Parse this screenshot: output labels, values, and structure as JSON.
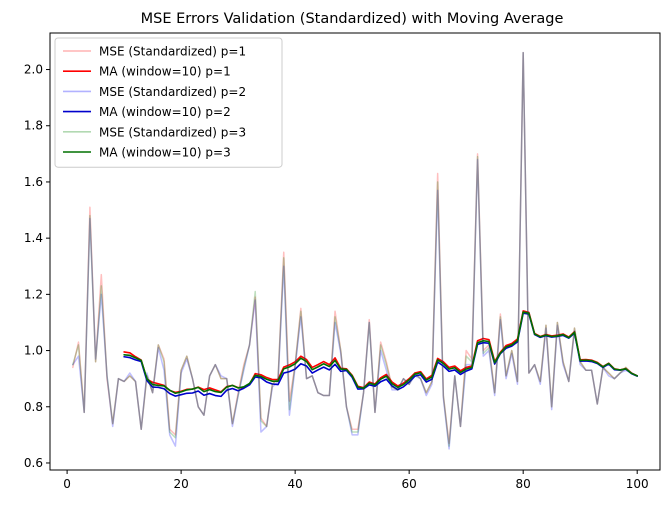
{
  "chart_data": {
    "type": "line",
    "title": "MSE Errors Validation (Standardized) with Moving Average",
    "xlabel": "",
    "ylabel": "",
    "xlim": [
      -3,
      104
    ],
    "ylim": [
      0.575,
      2.13
    ],
    "xticks": [
      0,
      20,
      40,
      60,
      80,
      100
    ],
    "yticks": [
      0.6,
      0.8,
      1.0,
      1.2,
      1.4,
      1.6,
      1.8,
      2.0
    ],
    "ytick_labels": [
      "0.6",
      "0.8",
      "1.0",
      "1.2",
      "1.4",
      "1.6",
      "1.8",
      "2.0"
    ],
    "grid": false,
    "legend_position": "top-left",
    "x": [
      1,
      2,
      3,
      4,
      5,
      6,
      7,
      8,
      9,
      10,
      11,
      12,
      13,
      14,
      15,
      16,
      17,
      18,
      19,
      20,
      21,
      22,
      23,
      24,
      25,
      26,
      27,
      28,
      29,
      30,
      31,
      32,
      33,
      34,
      35,
      36,
      37,
      38,
      39,
      40,
      41,
      42,
      43,
      44,
      45,
      46,
      47,
      48,
      49,
      50,
      51,
      52,
      53,
      54,
      55,
      56,
      57,
      58,
      59,
      60,
      61,
      62,
      63,
      64,
      65,
      66,
      67,
      68,
      69,
      70,
      71,
      72,
      73,
      74,
      75,
      76,
      77,
      78,
      79,
      80,
      81,
      82,
      83,
      84,
      85,
      86,
      87,
      88,
      89,
      90,
      91,
      92,
      93,
      94,
      95,
      96,
      97,
      98,
      99,
      100
    ],
    "series": [
      {
        "name": "MSE (Standardized) p=1",
        "color": "#ff0000",
        "alpha": 0.25,
        "kind": "raw",
        "values": [
          0.94,
          1.03,
          0.78,
          1.51,
          0.96,
          1.27,
          0.9,
          0.74,
          0.9,
          0.89,
          0.91,
          0.89,
          0.72,
          0.91,
          0.85,
          1.02,
          0.97,
          0.72,
          0.7,
          0.93,
          0.98,
          0.9,
          0.8,
          0.77,
          0.91,
          0.95,
          0.9,
          0.9,
          0.74,
          0.85,
          0.95,
          1.02,
          1.19,
          0.76,
          0.73,
          0.88,
          0.9,
          1.35,
          0.82,
          0.95,
          1.15,
          0.9,
          0.91,
          0.85,
          0.84,
          0.84,
          1.14,
          1.0,
          0.8,
          0.72,
          0.72,
          0.85,
          1.11,
          0.78,
          1.03,
          0.96,
          0.87,
          0.86,
          0.9,
          0.88,
          0.92,
          0.9,
          0.85,
          0.89,
          1.63,
          0.84,
          0.67,
          0.91,
          0.73,
          1.0,
          0.97,
          1.7,
          1.0,
          1.02,
          0.85,
          1.13,
          0.91,
          1.0,
          0.89,
          2.06,
          0.92,
          0.95,
          0.89,
          1.09,
          0.8,
          1.1,
          0.96,
          0.89,
          1.08,
          0.96,
          0.93,
          0.93,
          0.81,
          0.94,
          0.92,
          0.9,
          0.92,
          0.94,
          0.92,
          0.91
        ]
      },
      {
        "name": "MA (window=10) p=1",
        "color": "#ff0000",
        "alpha": 1,
        "kind": "ma",
        "values": [
          null,
          null,
          null,
          null,
          null,
          null,
          null,
          null,
          null,
          0.995,
          0.992,
          0.978,
          0.966,
          0.898,
          0.887,
          0.882,
          0.876,
          0.858,
          0.851,
          0.855,
          0.862,
          0.863,
          0.87,
          0.861,
          0.867,
          0.86,
          0.853,
          0.872,
          0.876,
          0.868,
          0.868,
          0.88,
          0.918,
          0.914,
          0.904,
          0.897,
          0.897,
          0.941,
          0.949,
          0.96,
          0.98,
          0.968,
          0.94,
          0.95,
          0.961,
          0.95,
          0.974,
          0.937,
          0.935,
          0.912,
          0.873,
          0.868,
          0.888,
          0.881,
          0.903,
          0.915,
          0.888,
          0.874,
          0.884,
          0.9,
          0.92,
          0.925,
          0.899,
          0.912,
          0.972,
          0.96,
          0.94,
          0.945,
          0.928,
          0.94,
          0.945,
          1.035,
          1.043,
          1.039,
          0.961,
          0.994,
          1.018,
          1.025,
          1.041,
          1.141,
          1.136,
          1.061,
          1.05,
          1.057,
          1.052,
          1.055,
          1.059,
          1.048,
          1.067,
          0.967,
          0.968,
          0.966,
          0.958,
          0.943,
          0.955,
          0.935,
          0.931,
          0.936,
          0.92,
          0.91
        ]
      },
      {
        "name": "MSE (Standardized) p=2",
        "color": "#0000ff",
        "alpha": 0.25,
        "kind": "raw",
        "values": [
          0.95,
          0.98,
          0.78,
          1.47,
          0.97,
          1.2,
          0.91,
          0.73,
          0.9,
          0.89,
          0.92,
          0.89,
          0.72,
          0.92,
          0.85,
          1.01,
          0.93,
          0.7,
          0.66,
          0.92,
          0.97,
          0.9,
          0.8,
          0.77,
          0.91,
          0.95,
          0.91,
          0.9,
          0.73,
          0.84,
          0.93,
          1.02,
          1.18,
          0.71,
          0.73,
          0.87,
          0.89,
          1.3,
          0.77,
          0.94,
          1.12,
          0.9,
          0.91,
          0.85,
          0.84,
          0.84,
          1.1,
          0.99,
          0.8,
          0.7,
          0.7,
          0.85,
          1.1,
          0.78,
          1.0,
          0.93,
          0.86,
          0.86,
          0.9,
          0.88,
          0.91,
          0.9,
          0.84,
          0.88,
          1.57,
          0.83,
          0.65,
          0.91,
          0.73,
          0.95,
          0.95,
          1.68,
          0.98,
          1.0,
          0.84,
          1.11,
          0.9,
          0.99,
          0.88,
          2.06,
          0.92,
          0.95,
          0.88,
          1.08,
          0.79,
          1.09,
          0.95,
          0.89,
          1.07,
          0.95,
          0.93,
          0.93,
          0.81,
          0.94,
          0.91,
          0.9,
          0.92,
          0.93,
          0.92,
          0.91
        ]
      },
      {
        "name": "MA (window=10) p=2",
        "color": "#0000cc",
        "alpha": 1,
        "kind": "ma",
        "values": [
          null,
          null,
          null,
          null,
          null,
          null,
          null,
          null,
          null,
          0.978,
          0.975,
          0.967,
          0.961,
          0.893,
          0.87,
          0.869,
          0.864,
          0.847,
          0.838,
          0.843,
          0.848,
          0.849,
          0.856,
          0.841,
          0.847,
          0.84,
          0.837,
          0.859,
          0.865,
          0.857,
          0.866,
          0.878,
          0.906,
          0.903,
          0.888,
          0.881,
          0.879,
          0.92,
          0.925,
          0.934,
          0.953,
          0.945,
          0.92,
          0.931,
          0.941,
          0.931,
          0.951,
          0.926,
          0.929,
          0.905,
          0.863,
          0.864,
          0.878,
          0.873,
          0.889,
          0.898,
          0.874,
          0.861,
          0.871,
          0.888,
          0.909,
          0.914,
          0.888,
          0.898,
          0.959,
          0.945,
          0.926,
          0.931,
          0.915,
          0.927,
          0.935,
          1.022,
          1.028,
          1.026,
          0.952,
          0.989,
          1.008,
          1.016,
          1.031,
          1.133,
          1.13,
          1.057,
          1.047,
          1.053,
          1.048,
          1.05,
          1.054,
          1.044,
          1.062,
          0.962,
          0.963,
          0.961,
          0.954,
          0.94,
          0.952,
          0.932,
          0.93,
          0.934,
          0.918,
          0.909
        ]
      },
      {
        "name": "MSE (Standardized) p=3",
        "color": "#008000",
        "alpha": 0.25,
        "kind": "raw",
        "values": [
          0.95,
          1.02,
          0.78,
          1.48,
          0.96,
          1.23,
          0.91,
          0.74,
          0.9,
          0.89,
          0.91,
          0.89,
          0.72,
          0.91,
          0.85,
          1.02,
          0.96,
          0.71,
          0.69,
          0.93,
          0.98,
          0.9,
          0.8,
          0.77,
          0.91,
          0.95,
          0.9,
          0.9,
          0.74,
          0.84,
          0.94,
          1.02,
          1.21,
          0.75,
          0.73,
          0.88,
          0.9,
          1.33,
          0.79,
          0.95,
          1.14,
          0.9,
          0.91,
          0.85,
          0.84,
          0.84,
          1.12,
          1.0,
          0.8,
          0.71,
          0.71,
          0.85,
          1.1,
          0.78,
          1.02,
          0.95,
          0.87,
          0.86,
          0.9,
          0.88,
          0.92,
          0.9,
          0.85,
          0.89,
          1.6,
          0.84,
          0.66,
          0.91,
          0.73,
          0.98,
          0.96,
          1.69,
          0.99,
          1.01,
          0.85,
          1.12,
          0.91,
          1.0,
          0.89,
          2.06,
          0.92,
          0.95,
          0.89,
          1.09,
          0.8,
          1.1,
          0.96,
          0.89,
          1.08,
          0.96,
          0.93,
          0.93,
          0.81,
          0.94,
          0.92,
          0.9,
          0.92,
          0.94,
          0.92,
          0.91
        ]
      },
      {
        "name": "MA (window=10) p=3",
        "color": "#007000",
        "alpha": 1,
        "kind": "ma",
        "values": [
          null,
          null,
          null,
          null,
          null,
          null,
          null,
          null,
          null,
          0.985,
          0.983,
          0.974,
          0.965,
          0.9,
          0.879,
          0.876,
          0.874,
          0.859,
          0.848,
          0.853,
          0.86,
          0.863,
          0.869,
          0.854,
          0.861,
          0.854,
          0.851,
          0.87,
          0.876,
          0.867,
          0.871,
          0.883,
          0.912,
          0.908,
          0.898,
          0.891,
          0.891,
          0.935,
          0.942,
          0.953,
          0.973,
          0.961,
          0.932,
          0.942,
          0.953,
          0.943,
          0.965,
          0.934,
          0.933,
          0.91,
          0.87,
          0.866,
          0.884,
          0.878,
          0.898,
          0.909,
          0.882,
          0.869,
          0.879,
          0.896,
          0.916,
          0.921,
          0.895,
          0.906,
          0.967,
          0.954,
          0.934,
          0.939,
          0.922,
          0.934,
          0.94,
          1.028,
          1.035,
          1.032,
          0.957,
          0.991,
          1.013,
          1.02,
          1.036,
          1.137,
          1.133,
          1.059,
          1.049,
          1.055,
          1.05,
          1.052,
          1.057,
          1.046,
          1.065,
          0.965,
          0.966,
          0.964,
          0.956,
          0.942,
          0.954,
          0.934,
          0.931,
          0.935,
          0.919,
          0.91
        ]
      }
    ]
  }
}
